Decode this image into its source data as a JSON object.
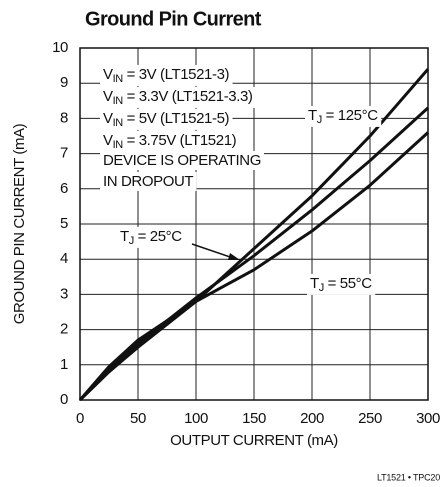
{
  "chart_data": {
    "type": "line",
    "title": "Ground Pin Current",
    "xlabel": "OUTPUT CURRENT (mA)",
    "ylabel": "GROUND PIN CURRENT (mA)",
    "x": [
      0,
      25,
      50,
      75,
      100,
      125,
      150,
      175,
      200,
      225,
      250,
      275,
      300
    ],
    "series": [
      {
        "label": {
          "main": "T",
          "sub": "J",
          "rest": " = 125°C"
        },
        "color": "#111111",
        "values": [
          0,
          0.8,
          1.5,
          2.15,
          2.8,
          3.55,
          4.3,
          5.05,
          5.8,
          6.65,
          7.5,
          8.45,
          9.4
        ]
      },
      {
        "label": {
          "main": "T",
          "sub": "J",
          "rest": " = 25°C"
        },
        "color": "#111111",
        "values": [
          0,
          0.85,
          1.6,
          2.25,
          2.9,
          3.5,
          4.1,
          4.75,
          5.4,
          6.1,
          6.8,
          7.55,
          8.3
        ]
      },
      {
        "label": {
          "main": "T",
          "sub": "J",
          "rest": " = 55°C"
        },
        "color": "#111111",
        "values": [
          0,
          0.95,
          1.7,
          2.25,
          2.8,
          3.25,
          3.7,
          4.25,
          4.8,
          5.45,
          6.1,
          6.85,
          7.6
        ]
      }
    ],
    "annotations": [
      {
        "main": "V",
        "sub": "IN",
        "rest": " = 3V (LT1521-3)"
      },
      {
        "main": "V",
        "sub": "IN",
        "rest": " = 3.3V (LT1521-3.3)"
      },
      {
        "main": "V",
        "sub": "IN",
        "rest": " = 5V (LT1521-5)"
      },
      {
        "main": "V",
        "sub": "IN",
        "rest": " = 3.75V (LT1521)"
      },
      {
        "main": "DEVICE IS OPERATING"
      },
      {
        "main": "IN DROPOUT"
      }
    ],
    "footnote": "LT1521 • TPC20",
    "xlim": [
      0,
      300
    ],
    "xticks": [
      0,
      50,
      100,
      150,
      200,
      250,
      300
    ],
    "ylim": [
      0,
      10
    ],
    "yticks": [
      0,
      1,
      2,
      3,
      4,
      5,
      6,
      7,
      8,
      9,
      10
    ],
    "grid": true
  }
}
